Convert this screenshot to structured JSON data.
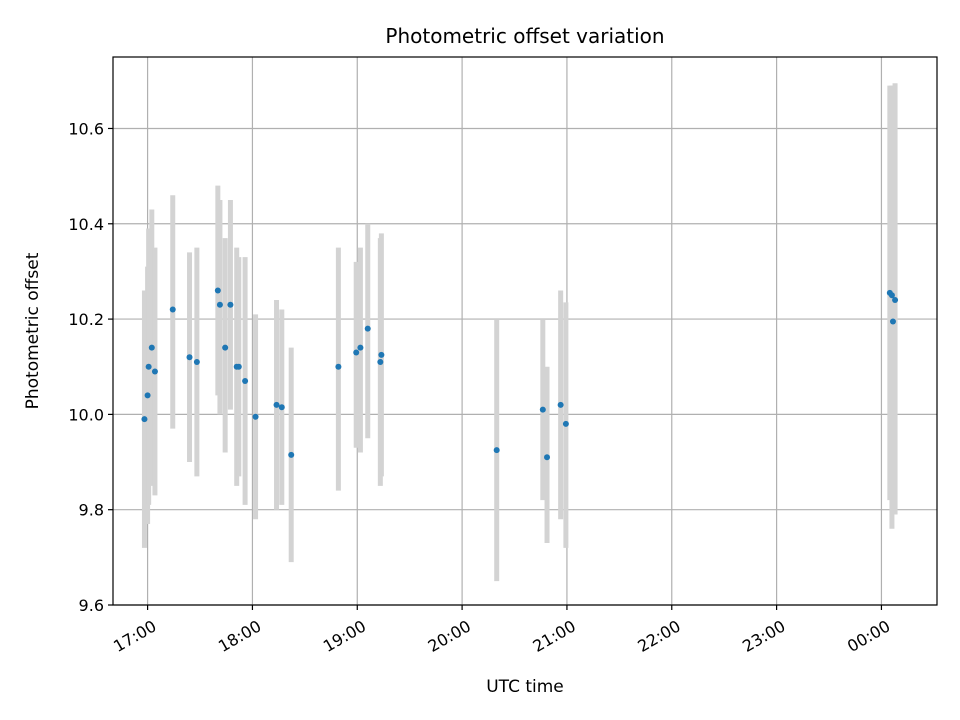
{
  "chart_data": {
    "type": "scatter",
    "title": "Photometric offset variation",
    "xlabel": "UTC time",
    "ylabel": "Photometric offset",
    "x_unit": "hours since 17:00 UTC",
    "xlim": [
      -0.33,
      7.53
    ],
    "ylim": [
      9.6,
      10.75
    ],
    "grid": true,
    "x_ticks": [
      {
        "value": 0,
        "label": "17:00"
      },
      {
        "value": 1,
        "label": "18:00"
      },
      {
        "value": 2,
        "label": "19:00"
      },
      {
        "value": 3,
        "label": "20:00"
      },
      {
        "value": 4,
        "label": "21:00"
      },
      {
        "value": 5,
        "label": "22:00"
      },
      {
        "value": 6,
        "label": "23:00"
      },
      {
        "value": 7,
        "label": "00:00"
      }
    ],
    "y_ticks": [
      {
        "value": 9.6,
        "label": "9.6"
      },
      {
        "value": 9.8,
        "label": "9.8"
      },
      {
        "value": 10.0,
        "label": "10.0"
      },
      {
        "value": 10.2,
        "label": "10.2"
      },
      {
        "value": 10.4,
        "label": "10.4"
      },
      {
        "value": 10.6,
        "label": "10.6"
      }
    ],
    "series": [
      {
        "name": "offset",
        "color": "#1f77b4",
        "errorbar_color": "#d3d3d3",
        "points": [
          {
            "x": -0.03,
            "y": 9.99,
            "ylo": 9.72,
            "yhi": 10.26
          },
          {
            "x": 0.0,
            "y": 10.04,
            "ylo": 9.77,
            "yhi": 10.31
          },
          {
            "x": 0.01,
            "y": 10.1,
            "ylo": 9.81,
            "yhi": 10.39
          },
          {
            "x": 0.04,
            "y": 10.14,
            "ylo": 9.85,
            "yhi": 10.43
          },
          {
            "x": 0.07,
            "y": 10.09,
            "ylo": 9.83,
            "yhi": 10.35
          },
          {
            "x": 0.24,
            "y": 10.22,
            "ylo": 9.97,
            "yhi": 10.46
          },
          {
            "x": 0.4,
            "y": 10.12,
            "ylo": 9.9,
            "yhi": 10.34
          },
          {
            "x": 0.47,
            "y": 10.11,
            "ylo": 9.87,
            "yhi": 10.35
          },
          {
            "x": 0.67,
            "y": 10.26,
            "ylo": 10.04,
            "yhi": 10.48
          },
          {
            "x": 0.69,
            "y": 10.23,
            "ylo": 10.0,
            "yhi": 10.45
          },
          {
            "x": 0.74,
            "y": 10.14,
            "ylo": 9.92,
            "yhi": 10.37
          },
          {
            "x": 0.79,
            "y": 10.23,
            "ylo": 10.01,
            "yhi": 10.45
          },
          {
            "x": 0.85,
            "y": 10.1,
            "ylo": 9.85,
            "yhi": 10.35
          },
          {
            "x": 0.87,
            "y": 10.1,
            "ylo": 9.87,
            "yhi": 10.33
          },
          {
            "x": 0.93,
            "y": 10.07,
            "ylo": 9.81,
            "yhi": 10.33
          },
          {
            "x": 1.03,
            "y": 9.995,
            "ylo": 9.78,
            "yhi": 10.21
          },
          {
            "x": 1.23,
            "y": 10.02,
            "ylo": 9.8,
            "yhi": 10.24
          },
          {
            "x": 1.28,
            "y": 10.015,
            "ylo": 9.81,
            "yhi": 10.22
          },
          {
            "x": 1.37,
            "y": 9.915,
            "ylo": 9.69,
            "yhi": 10.14
          },
          {
            "x": 1.82,
            "y": 10.1,
            "ylo": 9.84,
            "yhi": 10.35
          },
          {
            "x": 1.99,
            "y": 10.13,
            "ylo": 9.93,
            "yhi": 10.32
          },
          {
            "x": 2.03,
            "y": 10.14,
            "ylo": 9.92,
            "yhi": 10.35
          },
          {
            "x": 2.1,
            "y": 10.18,
            "ylo": 9.95,
            "yhi": 10.4
          },
          {
            "x": 2.22,
            "y": 10.11,
            "ylo": 9.85,
            "yhi": 10.37
          },
          {
            "x": 2.23,
            "y": 10.125,
            "ylo": 9.87,
            "yhi": 10.38
          },
          {
            "x": 3.33,
            "y": 9.925,
            "ylo": 9.65,
            "yhi": 10.2
          },
          {
            "x": 3.77,
            "y": 10.01,
            "ylo": 9.82,
            "yhi": 10.2
          },
          {
            "x": 3.81,
            "y": 9.91,
            "ylo": 9.73,
            "yhi": 10.1
          },
          {
            "x": 3.94,
            "y": 10.02,
            "ylo": 9.78,
            "yhi": 10.26
          },
          {
            "x": 3.99,
            "y": 9.98,
            "ylo": 9.72,
            "yhi": 10.235
          },
          {
            "x": 7.08,
            "y": 10.255,
            "ylo": 9.82,
            "yhi": 10.69
          },
          {
            "x": 7.1,
            "y": 10.25,
            "ylo": 9.76,
            "yhi": 10.69
          },
          {
            "x": 7.11,
            "y": 10.195,
            "ylo": 9.79,
            "yhi": 10.69
          },
          {
            "x": 7.13,
            "y": 10.24,
            "ylo": 9.79,
            "yhi": 10.695
          }
        ]
      }
    ]
  }
}
